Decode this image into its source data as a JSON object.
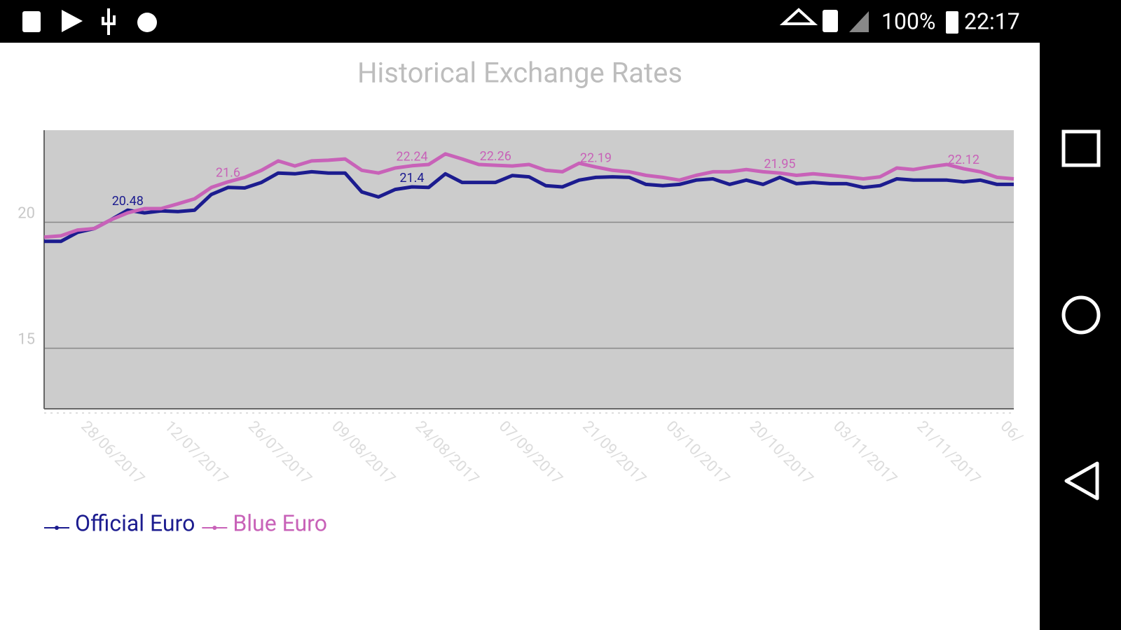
{
  "status_bar": {
    "battery": "100%",
    "time": "22:17"
  },
  "chart_data": {
    "type": "line",
    "title": "Historical Exchange Rates",
    "categories": [
      null,
      null,
      "28/06/2017",
      null,
      null,
      null,
      null,
      "12/07/2017",
      null,
      null,
      null,
      null,
      "26/07/2017",
      null,
      null,
      null,
      null,
      "09/08/2017",
      null,
      null,
      null,
      null,
      "24/08/2017",
      null,
      null,
      null,
      null,
      "07/09/2017",
      null,
      null,
      null,
      null,
      "21/09/2017",
      null,
      null,
      null,
      null,
      "05/10/2017",
      null,
      null,
      null,
      null,
      "20/10/2017",
      null,
      null,
      null,
      null,
      "03/11/2017",
      null,
      null,
      null,
      null,
      "21/11/2017",
      null,
      null,
      null,
      null,
      "06/",
      null
    ],
    "series": [
      {
        "name": "Official Euro",
        "color": "#1c1c8f",
        "values": [
          19.24,
          19.24,
          19.6,
          19.75,
          20.1,
          20.48,
          20.37,
          20.45,
          20.42,
          20.48,
          21.1,
          21.38,
          21.36,
          21.58,
          21.95,
          21.92,
          22.0,
          21.95,
          21.95,
          21.2,
          21.0,
          21.3,
          21.4,
          21.38,
          21.92,
          21.58,
          21.58,
          21.58,
          21.85,
          21.8,
          21.45,
          21.4,
          21.67,
          21.78,
          21.8,
          21.78,
          21.5,
          21.45,
          21.5,
          21.67,
          21.72,
          21.5,
          21.67,
          21.5,
          21.78,
          21.53,
          21.58,
          21.53,
          21.53,
          21.38,
          21.45,
          21.72,
          21.67,
          21.67,
          21.67,
          21.6,
          21.67,
          21.5,
          21.5
        ],
        "value_labels": [
          null,
          null,
          null,
          null,
          null,
          "20.48",
          null,
          null,
          null,
          null,
          null,
          null,
          null,
          null,
          null,
          null,
          null,
          null,
          null,
          null,
          null,
          null,
          "21.4",
          null,
          null,
          null,
          null,
          null,
          null,
          null,
          null,
          null,
          null,
          null,
          null,
          null,
          null,
          null,
          null,
          null,
          null,
          null,
          null,
          null,
          null,
          null,
          null,
          null,
          null,
          null,
          null,
          null,
          null,
          null,
          null,
          null,
          null,
          null,
          null
        ]
      },
      {
        "name": "Blue Euro",
        "color": "#c862b8",
        "values": [
          19.41,
          19.46,
          19.69,
          19.75,
          20.1,
          20.37,
          20.54,
          20.54,
          20.73,
          20.93,
          21.38,
          21.6,
          21.78,
          22.06,
          22.43,
          22.23,
          22.43,
          22.46,
          22.51,
          22.06,
          21.95,
          22.15,
          22.24,
          22.29,
          22.71,
          22.51,
          22.29,
          22.26,
          22.23,
          22.29,
          22.06,
          22.0,
          22.34,
          22.19,
          22.06,
          22.0,
          21.86,
          21.78,
          21.67,
          21.86,
          22.0,
          22.0,
          22.09,
          22.0,
          21.95,
          21.86,
          21.92,
          21.86,
          21.8,
          21.72,
          21.8,
          22.15,
          22.09,
          22.2,
          22.29,
          22.12,
          22.0,
          21.78,
          21.72
        ],
        "value_labels": [
          null,
          null,
          null,
          null,
          null,
          null,
          null,
          null,
          null,
          null,
          null,
          "21.6",
          null,
          null,
          null,
          null,
          null,
          null,
          null,
          null,
          null,
          null,
          "22.24",
          null,
          null,
          null,
          null,
          "22.26",
          null,
          null,
          null,
          null,
          null,
          "22.19",
          null,
          null,
          null,
          null,
          null,
          null,
          null,
          null,
          null,
          null,
          "21.95",
          null,
          null,
          null,
          null,
          null,
          null,
          null,
          null,
          null,
          null,
          "22.12",
          null,
          null,
          null
        ]
      }
    ],
    "ylim": [
      12.6,
      23.65
    ],
    "yticks": [
      15,
      20
    ],
    "grid": true,
    "legend": "bottom-left"
  }
}
